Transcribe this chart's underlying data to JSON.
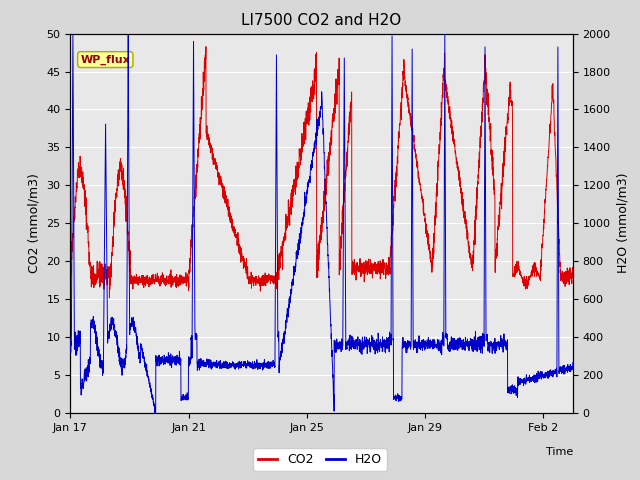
{
  "title": "LI7500 CO2 and H2O",
  "xlabel": "Time",
  "ylabel_left": "CO2 (mmol/m3)",
  "ylabel_right": "H2O (mmol/m3)",
  "ylim_left": [
    0,
    50
  ],
  "ylim_right": [
    0,
    2000
  ],
  "yticks_left": [
    0,
    5,
    10,
    15,
    20,
    25,
    30,
    35,
    40,
    45,
    50
  ],
  "yticks_right": [
    0,
    200,
    400,
    600,
    800,
    1000,
    1200,
    1400,
    1600,
    1800,
    2000
  ],
  "xtick_labels": [
    "Jan 17",
    "Jan 21",
    "Jan 25",
    "Jan 29",
    "Feb 2"
  ],
  "xtick_positions": [
    0,
    4,
    8,
    12,
    16
  ],
  "xlim": [
    0,
    17
  ],
  "fig_bg_color": "#d8d8d8",
  "plot_bg_color": "#e8e8e8",
  "grid_color": "#ffffff",
  "co2_color": "#dd0000",
  "h2o_color": "#0000cc",
  "legend_co2": "CO2",
  "legend_h2o": "H2O",
  "annotation_text": "WP_flux",
  "annotation_bg": "#ffff99",
  "annotation_border": "#aaaa00",
  "title_fontsize": 11,
  "label_fontsize": 9,
  "tick_fontsize": 8,
  "legend_fontsize": 9
}
